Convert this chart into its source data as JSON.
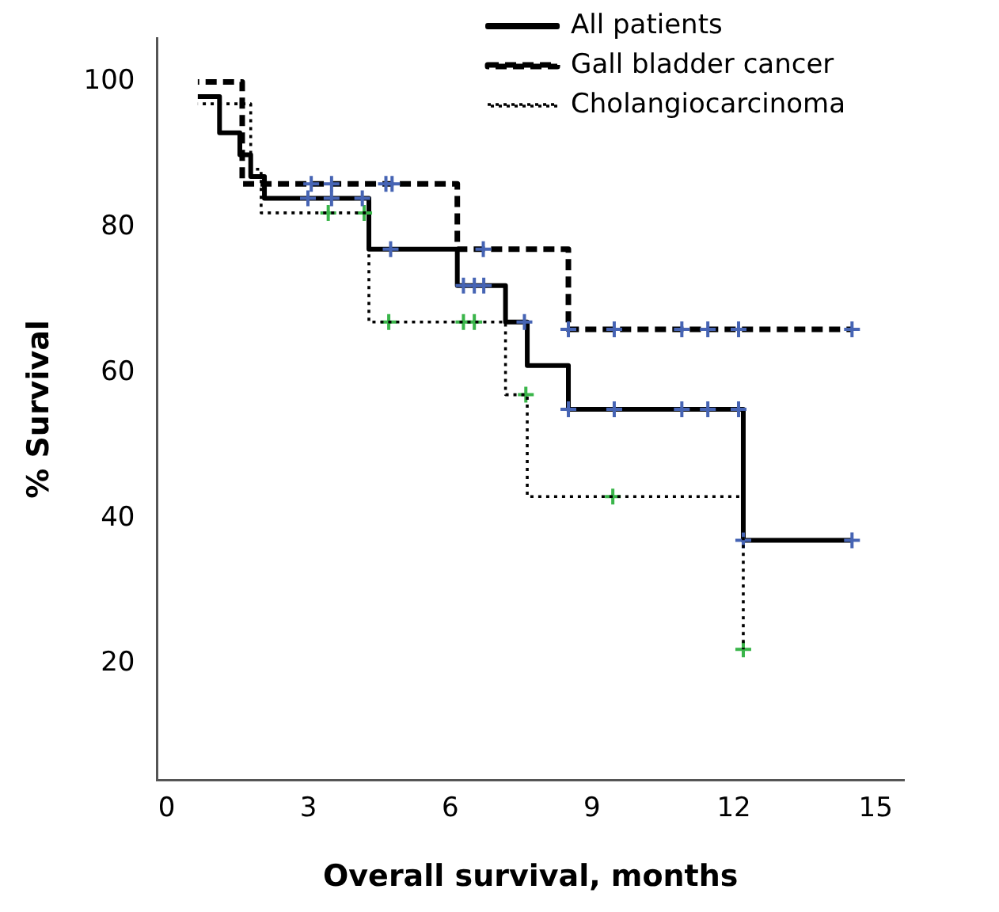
{
  "chart_data": {
    "type": "step",
    "xlabel": "Overall survival, months",
    "ylabel": "% Survival",
    "xlim": [
      -0.2,
      15.6
    ],
    "xticks": [
      0,
      3,
      6,
      9,
      12,
      15
    ],
    "ylim": [
      4,
      106
    ],
    "yticks": [
      20,
      40,
      60,
      80,
      100
    ],
    "grid": false,
    "legend": "top right",
    "series": [
      {
        "name": "All patients",
        "color": "#000000",
        "line_style": "solid",
        "marker": "none",
        "x": [
          0.66,
          1.12,
          1.55,
          1.78,
          2.07,
          4.28,
          6.15,
          7.17,
          7.63,
          8.5,
          12.2,
          14.5
        ],
        "values": [
          98,
          93,
          90,
          87,
          84,
          77,
          72,
          67,
          61,
          55,
          37,
          37
        ]
      },
      {
        "name": "Gall bladder cancer",
        "color": "#000000",
        "line_style": "dashed",
        "marker": "none",
        "x": [
          0.66,
          1.6,
          6.15,
          8.5,
          14.5
        ],
        "values": [
          100,
          86,
          77,
          66,
          66
        ]
      },
      {
        "name": "Cholangiocarcinoma",
        "color": "#000000",
        "line_style": "dotted",
        "marker": "none",
        "x": [
          0.66,
          1.78,
          2.0,
          4.28,
          7.17,
          7.63,
          12.2
        ],
        "values": [
          97,
          88,
          82,
          67,
          57,
          43,
          22
        ]
      },
      {
        "type": "scatter",
        "color": "#4664b4",
        "marker": "cross",
        "x": [
          2.99,
          3.49,
          4.14,
          4.74,
          6.28,
          6.51,
          6.71,
          7.57,
          8.5,
          9.47,
          10.9,
          11.45,
          12.1,
          12.2,
          14.5
        ],
        "values": [
          84,
          84,
          84,
          77,
          72,
          72,
          72,
          67,
          55,
          55,
          55,
          55,
          55,
          37,
          37
        ]
      },
      {
        "type": "scatter",
        "color": "#4664b4",
        "marker": "cross",
        "x": [
          3.06,
          3.49,
          4.64,
          4.77,
          6.7,
          8.5,
          9.47,
          10.9,
          11.45,
          12.1,
          14.5
        ],
        "values": [
          86,
          86,
          86,
          86,
          77,
          66,
          66,
          66,
          66,
          66,
          66
        ]
      },
      {
        "type": "scatter",
        "color": "#3ab54a",
        "marker": "cross",
        "x": [
          3.42,
          4.18,
          4.7,
          6.28,
          6.51,
          7.6,
          9.44,
          12.2
        ],
        "values": [
          82,
          82,
          67,
          67,
          67,
          57,
          43,
          22
        ]
      }
    ]
  }
}
